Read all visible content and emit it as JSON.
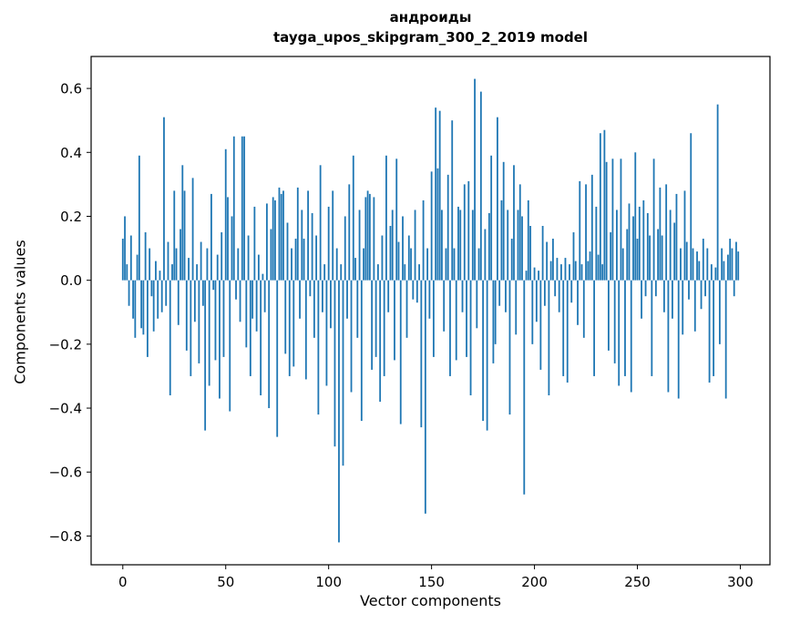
{
  "figure": {
    "title_line1": "андроиды",
    "title_line2": "tayga_upos_skipgram_300_2_2019 model",
    "xlabel": "Vector components",
    "ylabel": "Components values"
  },
  "chart_data": {
    "type": "bar",
    "title": "андроиды\ntayga_upos_skipgram_300_2_2019 model",
    "xlabel": "Vector components",
    "ylabel": "Components values",
    "legend": "none",
    "grid": false,
    "bar_color": "#1f77b4",
    "bar_width": 0.8,
    "xlim": [
      -15.4,
      314.4
    ],
    "ylim": [
      -0.89,
      0.7
    ],
    "xtick_values": [
      0,
      50,
      100,
      150,
      200,
      250,
      300
    ],
    "xtick_labels": [
      "0",
      "50",
      "100",
      "150",
      "200",
      "250",
      "300"
    ],
    "ytick_values": [
      -0.8,
      -0.6,
      -0.4,
      -0.2,
      0.0,
      0.2,
      0.4,
      0.6
    ],
    "ytick_labels": [
      "−0.8",
      "−0.6",
      "−0.4",
      "−0.2",
      "0.0",
      "0.2",
      "0.4",
      "0.6"
    ],
    "values": [
      0.13,
      0.2,
      0.05,
      -0.08,
      0.14,
      -0.12,
      -0.18,
      0.08,
      0.39,
      -0.15,
      -0.17,
      0.15,
      -0.24,
      0.1,
      -0.05,
      -0.16,
      0.06,
      -0.12,
      0.03,
      -0.1,
      0.51,
      -0.08,
      0.12,
      -0.36,
      0.05,
      0.28,
      0.1,
      -0.14,
      0.16,
      0.36,
      0.28,
      -0.22,
      0.07,
      -0.3,
      0.32,
      -0.13,
      0.05,
      -0.26,
      0.12,
      -0.08,
      -0.47,
      0.1,
      -0.33,
      0.27,
      -0.03,
      -0.25,
      0.08,
      -0.37,
      0.15,
      -0.24,
      0.41,
      0.26,
      -0.41,
      0.2,
      0.45,
      -0.06,
      0.1,
      -0.13,
      0.45,
      0.45,
      -0.21,
      0.14,
      -0.3,
      -0.12,
      0.23,
      -0.16,
      0.08,
      -0.36,
      0.02,
      -0.1,
      0.24,
      -0.4,
      0.16,
      0.26,
      0.25,
      -0.49,
      0.29,
      0.27,
      0.28,
      -0.23,
      0.18,
      -0.3,
      0.1,
      -0.27,
      0.13,
      0.29,
      -0.12,
      0.22,
      0.13,
      -0.31,
      0.28,
      -0.05,
      0.21,
      -0.18,
      0.14,
      -0.42,
      0.36,
      -0.1,
      0.05,
      -0.33,
      0.23,
      -0.15,
      0.28,
      -0.52,
      0.1,
      -0.82,
      0.05,
      -0.58,
      0.2,
      -0.12,
      0.3,
      -0.35,
      0.39,
      0.07,
      -0.18,
      0.22,
      -0.44,
      0.1,
      0.26,
      0.28,
      0.27,
      -0.28,
      0.26,
      -0.24,
      0.05,
      -0.38,
      0.14,
      -0.3,
      0.39,
      -0.1,
      0.17,
      0.22,
      -0.25,
      0.38,
      0.12,
      -0.45,
      0.2,
      0.05,
      -0.18,
      0.14,
      0.1,
      -0.06,
      0.22,
      -0.07,
      0.05,
      -0.46,
      0.25,
      -0.73,
      0.1,
      -0.12,
      0.34,
      -0.24,
      0.54,
      0.35,
      0.53,
      0.22,
      -0.16,
      0.1,
      0.33,
      -0.3,
      0.5,
      0.1,
      -0.25,
      0.23,
      0.22,
      -0.1,
      0.3,
      -0.24,
      0.31,
      -0.36,
      0.22,
      0.63,
      -0.15,
      0.1,
      0.59,
      -0.44,
      0.16,
      -0.47,
      0.21,
      0.39,
      -0.26,
      -0.2,
      0.51,
      -0.08,
      0.25,
      0.37,
      -0.1,
      0.22,
      -0.42,
      0.13,
      0.36,
      -0.17,
      0.22,
      0.3,
      0.2,
      -0.67,
      0.03,
      0.25,
      0.17,
      -0.2,
      0.04,
      -0.13,
      0.03,
      -0.28,
      0.17,
      -0.08,
      0.12,
      -0.36,
      0.06,
      0.13,
      -0.05,
      0.07,
      -0.1,
      0.05,
      -0.3,
      0.07,
      -0.32,
      0.05,
      -0.07,
      0.15,
      0.06,
      -0.14,
      0.31,
      0.05,
      -0.18,
      0.3,
      0.06,
      0.09,
      0.33,
      -0.3,
      0.23,
      0.08,
      0.46,
      0.05,
      0.47,
      0.37,
      -0.22,
      0.15,
      0.38,
      -0.26,
      0.22,
      -0.33,
      0.38,
      0.1,
      -0.3,
      0.16,
      0.24,
      -0.35,
      0.2,
      0.4,
      0.13,
      0.23,
      -0.12,
      0.25,
      -0.05,
      0.21,
      0.14,
      -0.3,
      0.38,
      -0.05,
      0.16,
      0.29,
      0.14,
      -0.1,
      0.3,
      -0.35,
      0.22,
      -0.12,
      0.18,
      0.27,
      -0.37,
      0.1,
      -0.17,
      0.28,
      0.12,
      -0.06,
      0.46,
      0.1,
      -0.16,
      0.09,
      0.06,
      -0.09,
      0.13,
      -0.05,
      0.1,
      -0.32,
      0.05,
      -0.3,
      0.04,
      0.55,
      -0.2,
      0.1,
      0.06,
      -0.37,
      0.08,
      0.13,
      0.1,
      -0.05,
      0.12,
      0.09
    ]
  }
}
